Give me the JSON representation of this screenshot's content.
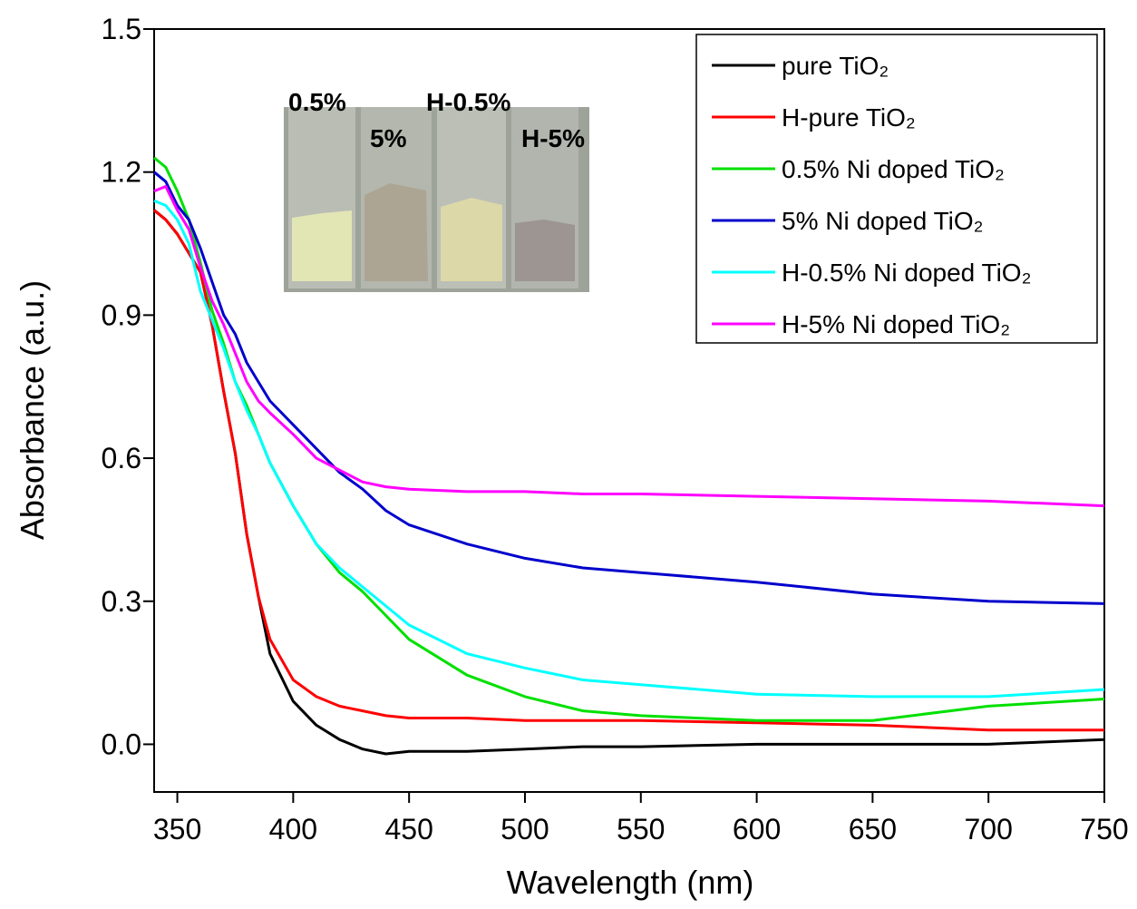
{
  "chart_data": {
    "type": "line",
    "x_label": "Wavelength (nm)",
    "y_label": "Absorbance (a.u.)",
    "x": [
      340,
      345,
      350,
      355,
      360,
      365,
      370,
      375,
      380,
      385,
      390,
      400,
      410,
      420,
      430,
      440,
      450,
      475,
      500,
      525,
      550,
      600,
      650,
      700,
      750
    ],
    "series": [
      {
        "name": "pure TiO₂",
        "color": "#000000",
        "values": [
          1.12,
          1.1,
          1.07,
          1.03,
          0.99,
          0.88,
          0.74,
          0.61,
          0.44,
          0.31,
          0.19,
          0.09,
          0.04,
          0.01,
          -0.01,
          -0.02,
          -0.015,
          -0.015,
          -0.01,
          -0.005,
          -0.005,
          0.0,
          0.0,
          0.0,
          0.01
        ]
      },
      {
        "name": "H-pure TiO₂",
        "color": "#ff0000",
        "values": [
          1.12,
          1.1,
          1.07,
          1.03,
          0.99,
          0.88,
          0.74,
          0.61,
          0.44,
          0.31,
          0.22,
          0.135,
          0.1,
          0.08,
          0.07,
          0.06,
          0.055,
          0.055,
          0.05,
          0.05,
          0.05,
          0.045,
          0.04,
          0.03,
          0.03
        ]
      },
      {
        "name": "0.5% Ni doped TiO₂",
        "color": "#00e000",
        "values": [
          1.23,
          1.21,
          1.16,
          1.1,
          1.01,
          0.91,
          0.84,
          0.76,
          0.71,
          0.65,
          0.59,
          0.5,
          0.42,
          0.36,
          0.32,
          0.27,
          0.22,
          0.145,
          0.1,
          0.07,
          0.06,
          0.05,
          0.05,
          0.08,
          0.095
        ]
      },
      {
        "name": "5% Ni doped TiO₂",
        "color": "#0000cc",
        "values": [
          1.2,
          1.18,
          1.13,
          1.1,
          1.04,
          0.97,
          0.9,
          0.86,
          0.8,
          0.76,
          0.72,
          0.67,
          0.62,
          0.57,
          0.535,
          0.49,
          0.46,
          0.42,
          0.39,
          0.37,
          0.36,
          0.34,
          0.315,
          0.3,
          0.295
        ]
      },
      {
        "name": "H-0.5% Ni doped TiO₂",
        "color": "#00ffff",
        "values": [
          1.14,
          1.13,
          1.1,
          1.05,
          0.95,
          0.89,
          0.83,
          0.76,
          0.7,
          0.65,
          0.59,
          0.5,
          0.42,
          0.37,
          0.33,
          0.29,
          0.25,
          0.19,
          0.16,
          0.135,
          0.125,
          0.105,
          0.1,
          0.1,
          0.115
        ]
      },
      {
        "name": "H-5% Ni doped TiO₂",
        "color": "#ff00ff",
        "values": [
          1.16,
          1.17,
          1.12,
          1.08,
          1.0,
          0.93,
          0.88,
          0.82,
          0.76,
          0.72,
          0.695,
          0.65,
          0.6,
          0.575,
          0.55,
          0.54,
          0.535,
          0.53,
          0.53,
          0.525,
          0.525,
          0.52,
          0.515,
          0.51,
          0.5
        ]
      }
    ],
    "xlim": [
      340,
      750
    ],
    "ylim": [
      -0.1,
      1.5
    ],
    "xticks": [
      350,
      400,
      450,
      500,
      550,
      600,
      650,
      700,
      750
    ],
    "yticks": [
      {
        "value": 0,
        "label": "0.0"
      },
      0.3,
      0.6,
      0.9,
      1.2,
      1.5
    ],
    "grid": false,
    "legend_loc": "upper right",
    "annotations": [
      "0.5%",
      "5%",
      "H-0.5%",
      "H-5%"
    ]
  }
}
